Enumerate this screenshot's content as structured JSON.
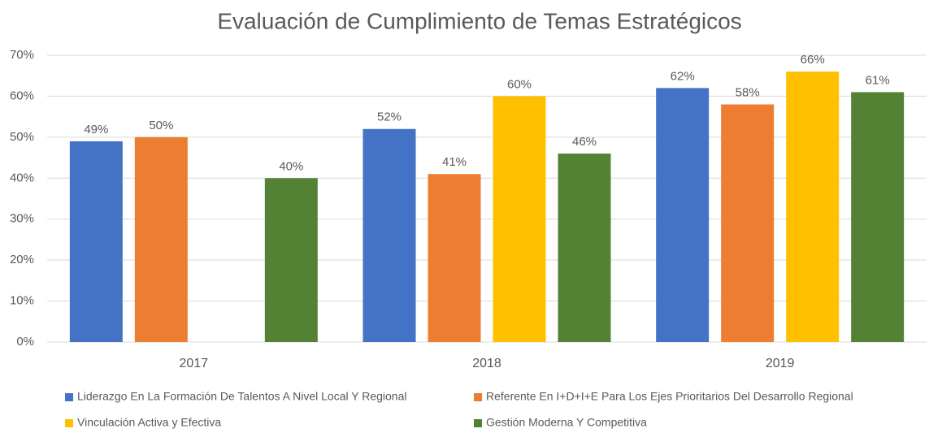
{
  "chart_data": {
    "type": "bar",
    "title": "Evaluación de Cumplimiento de Temas Estratégicos",
    "categories": [
      "2017",
      "2018",
      "2019"
    ],
    "series": [
      {
        "name": "Liderazgo En La Formación De Talentos A Nivel Local Y Regional",
        "color": "#4472c4",
        "values": [
          49,
          52,
          62
        ],
        "value_labels": [
          "49%",
          "52%",
          "62%"
        ]
      },
      {
        "name": "Referente En I+D+I+E Para Los Ejes Prioritarios Del Desarrollo Regional",
        "color": "#ed7d31",
        "values": [
          50,
          41,
          58
        ],
        "value_labels": [
          "50%",
          "41%",
          "58%"
        ]
      },
      {
        "name": "Vinculación Activa y Efectiva",
        "color": "#ffc000",
        "values": [
          null,
          60,
          66
        ],
        "value_labels": [
          null,
          "60%",
          "66%"
        ]
      },
      {
        "name": "Gestión Moderna Y Competitiva",
        "color": "#548235",
        "values": [
          40,
          46,
          61
        ],
        "value_labels": [
          "40%",
          "46%",
          "61%"
        ]
      }
    ],
    "ylim": [
      0,
      70
    ],
    "yticks": [
      {
        "value": 0,
        "label": "0%"
      },
      {
        "value": 10,
        "label": "10%"
      },
      {
        "value": 20,
        "label": "20%"
      },
      {
        "value": 30,
        "label": "30%"
      },
      {
        "value": 40,
        "label": "40%"
      },
      {
        "value": 50,
        "label": "50%"
      },
      {
        "value": 60,
        "label": "60%"
      },
      {
        "value": 70,
        "label": "70%"
      }
    ],
    "grid": true,
    "legend": "bottom"
  }
}
